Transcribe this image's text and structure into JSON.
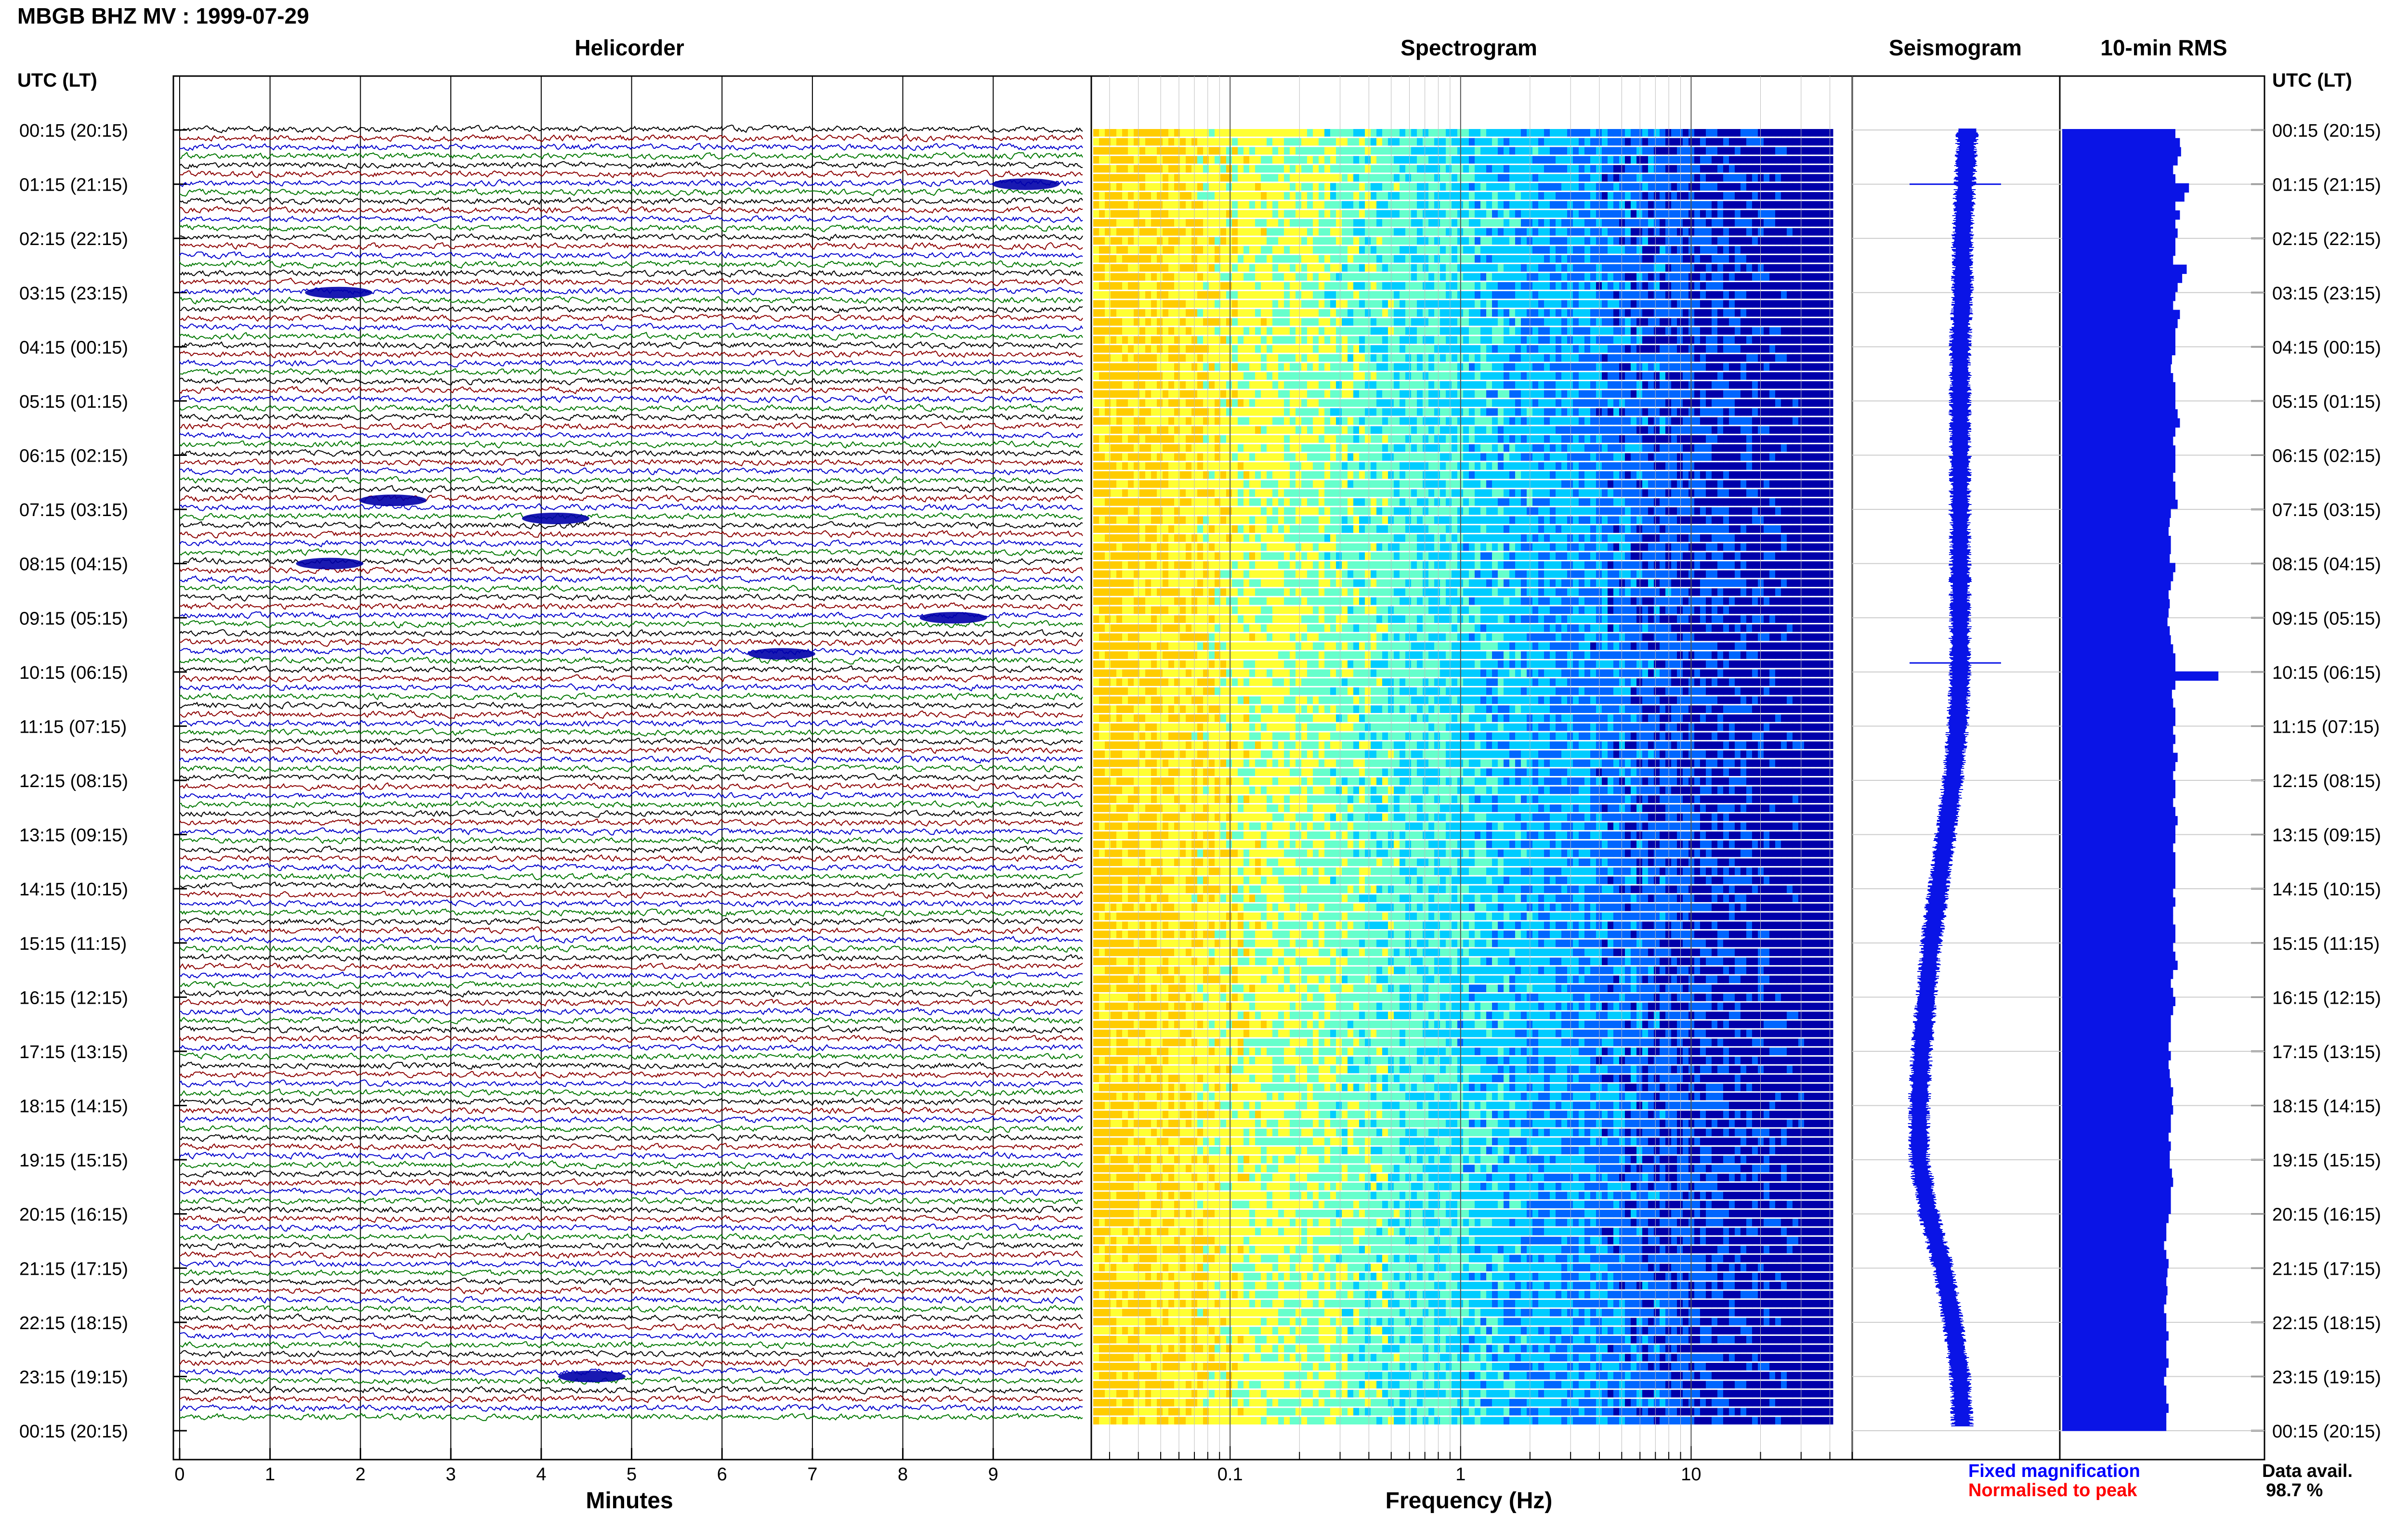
{
  "header": {
    "title": "MBGB BHZ MV : 1999-07-29"
  },
  "panels": {
    "helicorder": "Helicorder",
    "spectrogram": "Spectrogram",
    "seismogram": "Seismogram",
    "rms": "10-min RMS"
  },
  "axes": {
    "time_label_left": "UTC (LT)",
    "time_label_right": "UTC (LT)",
    "minutes_label": "Minutes",
    "frequency_label": "Frequency (Hz)"
  },
  "legend": {
    "fixed": "Fixed magnification",
    "normalised": "Normalised to peak",
    "data_avail_label": "Data avail.",
    "data_avail_value": "98.7 %"
  },
  "colors": {
    "trace_cycle": [
      "#000000",
      "#8b0000",
      "#0000cc",
      "#007700"
    ],
    "seismogram": "#0a14e6",
    "rms": "#0a14e6",
    "legend_fixed": "#0000ff",
    "legend_normalised": "#ff0000",
    "spectrogram_scale": [
      "#ffcc00",
      "#ffff33",
      "#66ffcc",
      "#00ccff",
      "#0066ff",
      "#0000aa"
    ]
  },
  "chart_data": [
    {
      "type": "line",
      "title": "Helicorder",
      "xlabel": "Minutes",
      "x_ticks": [
        "0",
        "1",
        "2",
        "3",
        "4",
        "5",
        "6",
        "7",
        "8",
        "9"
      ],
      "xlim": [
        0,
        10
      ],
      "row_interval_minutes": 10,
      "row_count": 144,
      "y_tick_labels": [
        "00:15 (20:15)",
        "01:15 (21:15)",
        "02:15 (22:15)",
        "03:15 (23:15)",
        "04:15 (00:15)",
        "05:15 (01:15)",
        "06:15 (02:15)",
        "07:15 (03:15)",
        "08:15 (04:15)",
        "09:15 (05:15)",
        "10:15 (06:15)",
        "11:15 (07:15)",
        "12:15 (08:15)",
        "13:15 (09:15)",
        "14:15 (10:15)",
        "15:15 (11:15)",
        "16:15 (12:15)",
        "17:15 (13:15)",
        "18:15 (14:15)",
        "19:15 (15:15)",
        "20:15 (16:15)",
        "21:15 (17:15)",
        "22:15 (18:15)",
        "23:15 (19:15)",
        "00:15 (20:15)"
      ],
      "events": [
        {
          "time": "01:15",
          "minute": 9.2
        },
        {
          "time": "03:15",
          "minute": 1.6
        },
        {
          "time": "07:05",
          "minute": 2.2
        },
        {
          "time": "07:25",
          "minute": 4.0
        },
        {
          "time": "08:15",
          "minute": 1.5
        },
        {
          "time": "09:15",
          "minute": 8.4
        },
        {
          "time": "09:55",
          "minute": 6.5
        },
        {
          "time": "23:15",
          "minute": 4.4
        }
      ]
    },
    {
      "type": "heatmap",
      "title": "Spectrogram",
      "xlabel": "Frequency (Hz)",
      "x_scale": "log",
      "x_ticks": [
        "0.1",
        "1",
        "10"
      ],
      "xlim": [
        0.025,
        50
      ],
      "data_xmax": 40
    },
    {
      "type": "line",
      "title": "Seismogram",
      "note_center_shift": [
        0,
        -1,
        -2,
        -2,
        -3,
        -3,
        -3,
        -3,
        -3,
        -3,
        -3,
        -4,
        -6,
        -9,
        -12,
        -15,
        -17,
        -19,
        -20,
        -20,
        -16,
        -10,
        -6,
        -3,
        -2
      ],
      "event_times": [
        "01:15",
        "10:05"
      ]
    },
    {
      "type": "bar",
      "title": "10-min RMS",
      "orientation": "horizontal",
      "values": [
        1.0,
        1.04,
        1.05,
        1.02,
        0.98,
        1.0,
        1.12,
        1.08,
        1.0,
        1.04,
        1.0,
        1.02,
        1.0,
        1.0,
        0.98,
        1.1,
        1.06,
        1.02,
        1.0,
        0.98,
        1.04,
        1.02,
        1.0,
        1.0,
        1.0,
        0.97,
        0.96,
        0.98,
        1.0,
        1.0,
        1.0,
        1.02,
        1.04,
        1.0,
        0.98,
        1.0,
        1.0,
        1.0,
        0.98,
        1.0,
        1.0,
        1.02,
        0.96,
        0.95,
        0.94,
        0.96,
        0.96,
        0.95,
        1.0,
        0.98,
        0.96,
        0.94,
        0.95,
        0.94,
        0.93,
        0.95,
        0.96,
        0.98,
        1.0,
        1.0,
        1.38,
        1.0,
        0.97,
        0.98,
        1.0,
        1.0,
        0.98,
        1.0,
        0.98,
        1.02,
        1.0,
        0.98,
        1.0,
        1.0,
        0.98,
        1.0,
        1.02,
        1.0,
        1.0,
        0.98,
        1.0,
        1.0,
        1.0,
        1.0,
        0.98,
        1.0,
        0.98,
        0.98,
        1.0,
        1.0,
        0.98,
        1.0,
        1.02,
        0.98,
        0.96,
        0.98,
        1.0,
        0.98,
        0.96,
        0.96,
        0.96,
        0.94,
        0.96,
        0.94,
        0.95,
        0.96,
        0.98,
        0.97,
        0.98,
        0.96,
        0.96,
        0.94,
        0.96,
        0.95,
        0.95,
        0.97,
        0.98,
        0.96,
        0.96,
        0.96,
        0.94,
        0.92,
        0.92,
        0.9,
        0.92,
        0.94,
        0.93,
        0.92,
        0.93,
        0.92,
        0.9,
        0.92,
        0.92,
        0.94,
        0.92,
        0.92,
        0.94,
        0.92,
        0.9,
        0.92,
        0.92,
        0.94,
        0.92,
        0.92
      ]
    }
  ]
}
